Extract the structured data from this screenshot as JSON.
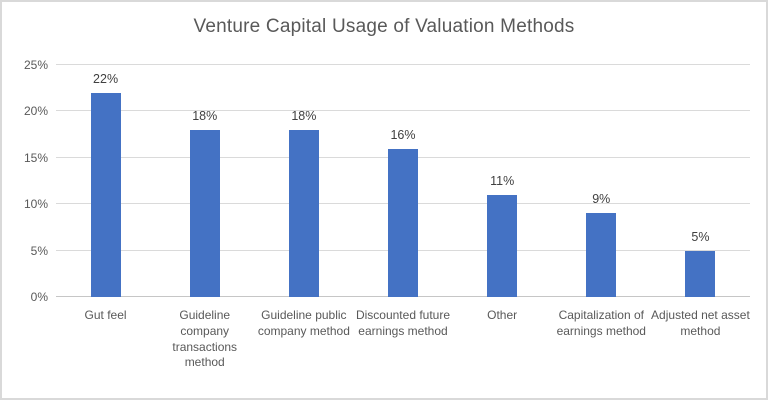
{
  "chart": {
    "title": "Venture Capital Usage of Valuation Methods"
  },
  "chart_data": {
    "type": "bar",
    "title": "Venture Capital Usage of Valuation Methods",
    "categories": [
      "Gut feel",
      "Guideline company transactions method",
      "Guideline public company method",
      "Discounted future earnings method",
      "Other",
      "Capitalization of earnings method",
      "Adjusted net asset method"
    ],
    "values": [
      22,
      18,
      18,
      16,
      11,
      9,
      5
    ],
    "data_labels": [
      "22%",
      "18%",
      "18%",
      "16%",
      "11%",
      "9%",
      "5%"
    ],
    "xlabel": "",
    "ylabel": "",
    "ylim": [
      0,
      25
    ],
    "ytick_step": 5,
    "ytick_labels": [
      "0%",
      "5%",
      "10%",
      "15%",
      "20%",
      "25%"
    ],
    "grid": true,
    "legend": false,
    "unit": "percent"
  },
  "colors": {
    "bar": "#4472C4",
    "title_text": "#595959",
    "axis_text": "#595959",
    "data_label_text": "#404040",
    "gridline": "#DADADA",
    "axis_line": "#C6C6C6",
    "chart_border": "#D9D9D9",
    "background": "#FFFFFF"
  }
}
